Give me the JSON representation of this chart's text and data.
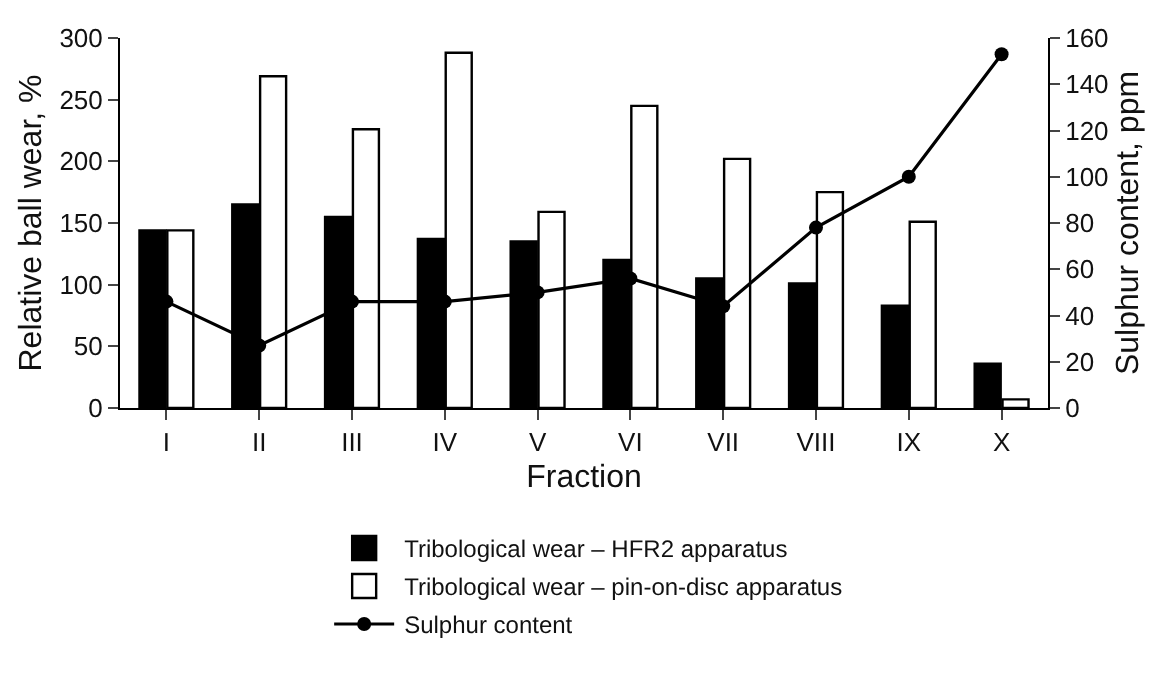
{
  "chart_data": {
    "type": "bar",
    "xlabel": "Fraction",
    "ylabel": "Relative ball wear, %",
    "y2label": "Sulphur content, ppm",
    "categories": [
      "I",
      "II",
      "III",
      "IV",
      "V",
      "VI",
      "VII",
      "VIII",
      "IX",
      "X"
    ],
    "series": [
      {
        "name": "Tribological wear – HFR2 apparatus",
        "color": "#000000",
        "values": [
          144,
          165,
          155,
          137,
          135,
          120,
          105,
          101,
          83,
          36
        ]
      },
      {
        "name": "Tribological wear – pin-on-disc apparatus",
        "color": "#ffffff",
        "values": [
          144,
          269,
          226,
          288,
          159,
          245,
          202,
          175,
          151,
          7
        ]
      },
      {
        "name": "Sulphur content",
        "type": "line",
        "axis": "y2",
        "color": "#000000",
        "marker": "circle",
        "values": [
          46,
          27,
          46,
          46,
          50,
          56,
          44,
          78,
          100,
          153
        ]
      }
    ],
    "ylim": [
      0,
      300
    ],
    "yticks": [
      0,
      50,
      100,
      150,
      200,
      250,
      300
    ],
    "y2lim": [
      0,
      160
    ],
    "y2ticks": [
      0,
      20,
      40,
      60,
      80,
      100,
      120,
      140,
      160
    ],
    "legend": "bottom"
  }
}
